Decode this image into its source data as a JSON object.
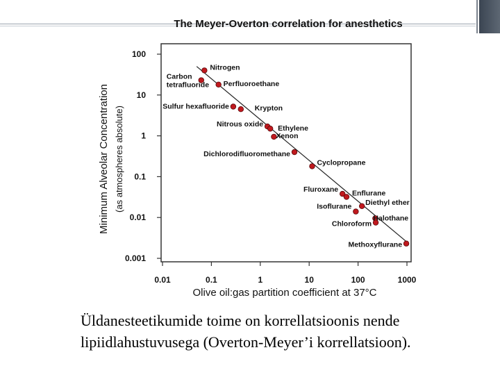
{
  "chart_data": {
    "type": "scatter",
    "title": "The Meyer-Overton correlation for anesthetics",
    "xlabel": "Olive oil:gas partition coefficient at 37°C",
    "ylabel": "Minimum Alveolar Concentration",
    "ylabel2": "(as atmospheres absolute)",
    "x_scale": "log",
    "y_scale": "log",
    "xlim": [
      0.01,
      1000
    ],
    "ylim": [
      0.001,
      100
    ],
    "x_ticks": [
      {
        "value": 0.01,
        "label": "0.01"
      },
      {
        "value": 0.1,
        "label": "0.1"
      },
      {
        "value": 1,
        "label": "1"
      },
      {
        "value": 10,
        "label": "10"
      },
      {
        "value": 100,
        "label": "100"
      },
      {
        "value": 1000,
        "label": "1000"
      }
    ],
    "y_ticks": [
      {
        "value": 0.001,
        "label": "0.001"
      },
      {
        "value": 0.01,
        "label": "0.01"
      },
      {
        "value": 0.1,
        "label": "0.1"
      },
      {
        "value": 1,
        "label": "1"
      },
      {
        "value": 10,
        "label": "10"
      },
      {
        "value": 100,
        "label": "100"
      }
    ],
    "grid": false,
    "trend_line": {
      "x": [
        0.05,
        1000
      ],
      "y": [
        50,
        0.0025
      ]
    },
    "point_color": "#c0191e",
    "points": [
      {
        "label": "Nitrogen",
        "x": 0.072,
        "y": 40
      },
      {
        "label": "Carbon tetrafluoride",
        "x": 0.062,
        "y": 23
      },
      {
        "label": "Perfluoroethane",
        "x": 0.14,
        "y": 18
      },
      {
        "label": "Sulfur hexafluoride",
        "x": 0.28,
        "y": 5.2
      },
      {
        "label": "Krypton",
        "x": 0.4,
        "y": 4.5
      },
      {
        "label": "Nitrous oxide",
        "x": 1.4,
        "y": 1.7
      },
      {
        "label": "Ethylene",
        "x": 1.6,
        "y": 1.5
      },
      {
        "label": "Xenon",
        "x": 1.9,
        "y": 0.95
      },
      {
        "label": "Dichlorodifluoromethane",
        "x": 5.0,
        "y": 0.4
      },
      {
        "label": "Cyclopropane",
        "x": 11.5,
        "y": 0.18
      },
      {
        "label": "Fluroxane",
        "x": 48,
        "y": 0.038
      },
      {
        "label": "Enflurane",
        "x": 58,
        "y": 0.032
      },
      {
        "label": "Diethyl ether",
        "x": 120,
        "y": 0.019
      },
      {
        "label": "Isoflurane",
        "x": 90,
        "y": 0.014
      },
      {
        "label": "Halothane",
        "x": 225,
        "y": 0.0095
      },
      {
        "label": "Chloroform",
        "x": 230,
        "y": 0.0075
      },
      {
        "label": "Methoxyflurane",
        "x": 970,
        "y": 0.0023
      }
    ]
  },
  "caption": {
    "line1": "Üldanesteetikumide toime on korrellatsioonis nende",
    "line2": "lipiidlahustuvusega (Overton-Meyer’i korrellatsioon)."
  }
}
